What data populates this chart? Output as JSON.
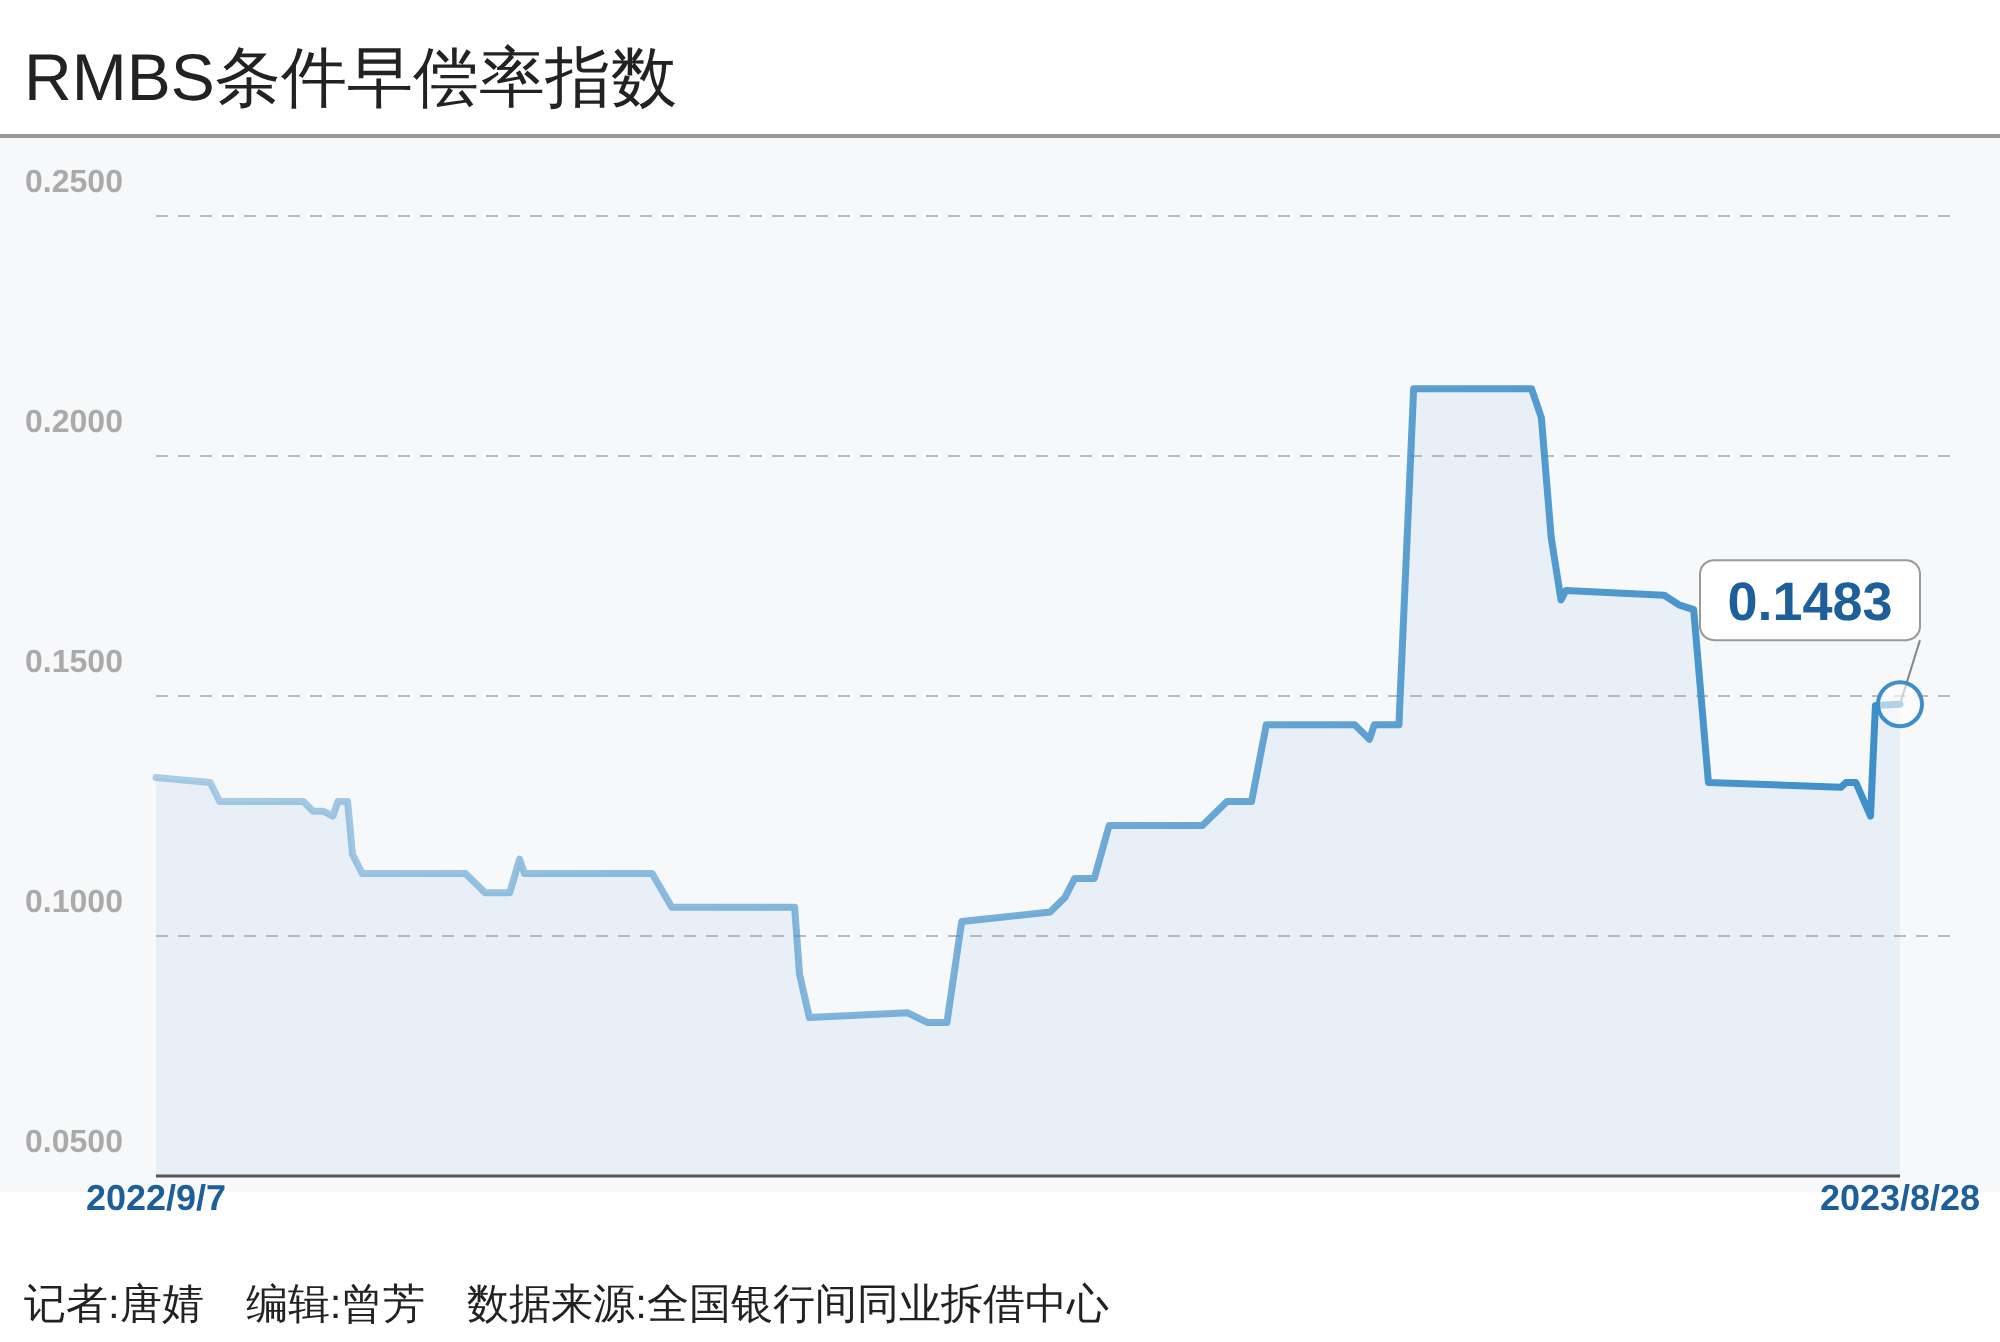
{
  "chart_data": {
    "type": "area",
    "title": "RMBS条件早偿率指数",
    "x": [
      "2022-09-07",
      "2022-09-18",
      "2022-09-20",
      "2022-10-07",
      "2022-10-09",
      "2022-10-11",
      "2022-10-13",
      "2022-10-14",
      "2022-10-16",
      "2022-10-17",
      "2022-10-19",
      "2022-11-09",
      "2022-11-13",
      "2022-11-18",
      "2022-11-20",
      "2022-11-21",
      "2022-12-17",
      "2022-12-21",
      "2023-01-15",
      "2023-01-16",
      "2023-01-18",
      "2023-02-07",
      "2023-02-11",
      "2023-02-15",
      "2023-02-18",
      "2023-03-08",
      "2023-03-11",
      "2023-03-13",
      "2023-03-17",
      "2023-03-20",
      "2023-04-08",
      "2023-04-13",
      "2023-04-18",
      "2023-04-21",
      "2023-05-09",
      "2023-05-12",
      "2023-05-13",
      "2023-05-18",
      "2023-05-21",
      "2023-06-14",
      "2023-06-16",
      "2023-06-18",
      "2023-06-20",
      "2023-06-21",
      "2023-07-11",
      "2023-07-14",
      "2023-07-17",
      "2023-07-20",
      "2023-08-16",
      "2023-08-17",
      "2023-08-19",
      "2023-08-22",
      "2023-08-23",
      "2023-08-28"
    ],
    "series": [
      {
        "color": "#3d8ec9",
        "values": [
          0.133,
          0.132,
          0.128,
          0.128,
          0.126,
          0.126,
          0.125,
          0.128,
          0.128,
          0.117,
          0.113,
          0.113,
          0.109,
          0.109,
          0.116,
          0.113,
          0.113,
          0.106,
          0.106,
          0.092,
          0.083,
          0.084,
          0.082,
          0.082,
          0.103,
          0.105,
          0.108,
          0.112,
          0.112,
          0.123,
          0.123,
          0.128,
          0.128,
          0.144,
          0.144,
          0.141,
          0.144,
          0.144,
          0.214,
          0.214,
          0.208,
          0.183,
          0.17,
          0.172,
          0.171,
          0.169,
          0.168,
          0.132,
          0.131,
          0.132,
          0.132,
          0.125,
          0.148,
          0.1483
        ]
      }
    ],
    "xlim": [
      "2022-09-07",
      "2023-08-28"
    ],
    "xticks": [
      {
        "value": "2022-09-07",
        "label": "2022/9/7"
      },
      {
        "value": "2023-08-28",
        "label": "2023/8/28"
      }
    ],
    "ylim": [
      0.05,
      0.25
    ],
    "yticks": [
      {
        "value": 0.05,
        "label": "0.0500"
      },
      {
        "value": 0.1,
        "label": "0.1000"
      },
      {
        "value": 0.15,
        "label": "0.1500"
      },
      {
        "value": 0.2,
        "label": "0.2000"
      },
      {
        "value": 0.25,
        "label": "0.2500"
      }
    ],
    "grid": "y",
    "annotations": [
      {
        "text": "0.1483",
        "x": "2023-08-28",
        "y": 0.1483
      },
      "记者:唐婧　编辑:曾芳　数据来源:全国银行间同业拆借中心"
    ]
  }
}
